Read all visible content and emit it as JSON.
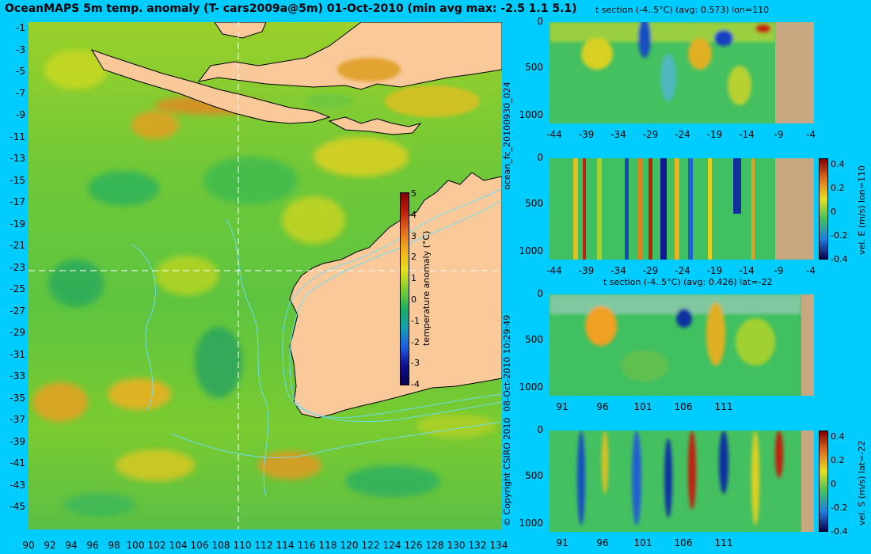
{
  "title": "OceanMAPS 5m temp. anomaly (T- cars2009a@5m) 01-Oct-2010 (min avg max: -2.5 1.1 5.1)",
  "map": {
    "lat_ticks": [
      "-1",
      "-3",
      "-5",
      "-7",
      "-9",
      "-11",
      "-13",
      "-15",
      "-17",
      "-19",
      "-21",
      "-23",
      "-25",
      "-27",
      "-29",
      "-31",
      "-33",
      "-35",
      "-37",
      "-39",
      "-41",
      "-43",
      "-45"
    ],
    "lon_ticks": [
      "90",
      "92",
      "94",
      "96",
      "98",
      "100",
      "102",
      "104",
      "106",
      "108",
      "110",
      "112",
      "114",
      "116",
      "118",
      "120",
      "122",
      "124",
      "126",
      "128",
      "130",
      "132",
      "134"
    ],
    "colorbar": {
      "ticks": [
        "5",
        "4",
        "3",
        "2",
        "1",
        "0",
        "-1",
        "-2",
        "-3",
        "-4"
      ],
      "label": "temperature anomaly (°C)"
    },
    "colors": {
      "land": "#f9c99a",
      "ocean_mid": "#7fd13a",
      "warm": "#e8a020",
      "cool": "#22aa55",
      "contour": "#66e0ff"
    }
  },
  "side_left_labels": {
    "top": "ocean_fc_20100930_024",
    "bottom": "08-Oct-2010 10:29:49",
    "copyright": "© Copyright CSIRO 2010"
  },
  "panels": [
    {
      "title": "t section (-4..5°C) (avg: 0.573) lon=110",
      "y_ticks": [
        "0",
        "500",
        "1000"
      ],
      "x_ticks": [
        "-44",
        "-39",
        "-34",
        "-29",
        "-24",
        "-19",
        "-14",
        "-9",
        "-4"
      ]
    },
    {
      "title": "",
      "y_ticks": [
        "0",
        "500",
        "1000"
      ],
      "x_ticks": [
        "-44",
        "-39",
        "-34",
        "-29",
        "-24",
        "-19",
        "-14",
        "-9",
        "-4"
      ],
      "colorbar": {
        "ticks": [
          "0.4",
          "0.2",
          "0",
          "-0.2",
          "-0.4"
        ],
        "label": "vel. E (m/s) lon=110"
      }
    },
    {
      "title": "t section (-4..5°C) (avg: 0.426) lat=-22",
      "y_ticks": [
        "0",
        "500",
        "1000"
      ],
      "x_ticks": [
        "91",
        "96",
        "101",
        "106",
        "111"
      ]
    },
    {
      "title": "",
      "y_ticks": [
        "0",
        "500",
        "1000"
      ],
      "x_ticks": [
        "91",
        "96",
        "101",
        "106",
        "111"
      ],
      "colorbar": {
        "ticks": [
          "0.4",
          "0.2",
          "0",
          "-0.2",
          "-0.4"
        ],
        "label": "vel. S (m/s) lat=-22"
      }
    }
  ]
}
